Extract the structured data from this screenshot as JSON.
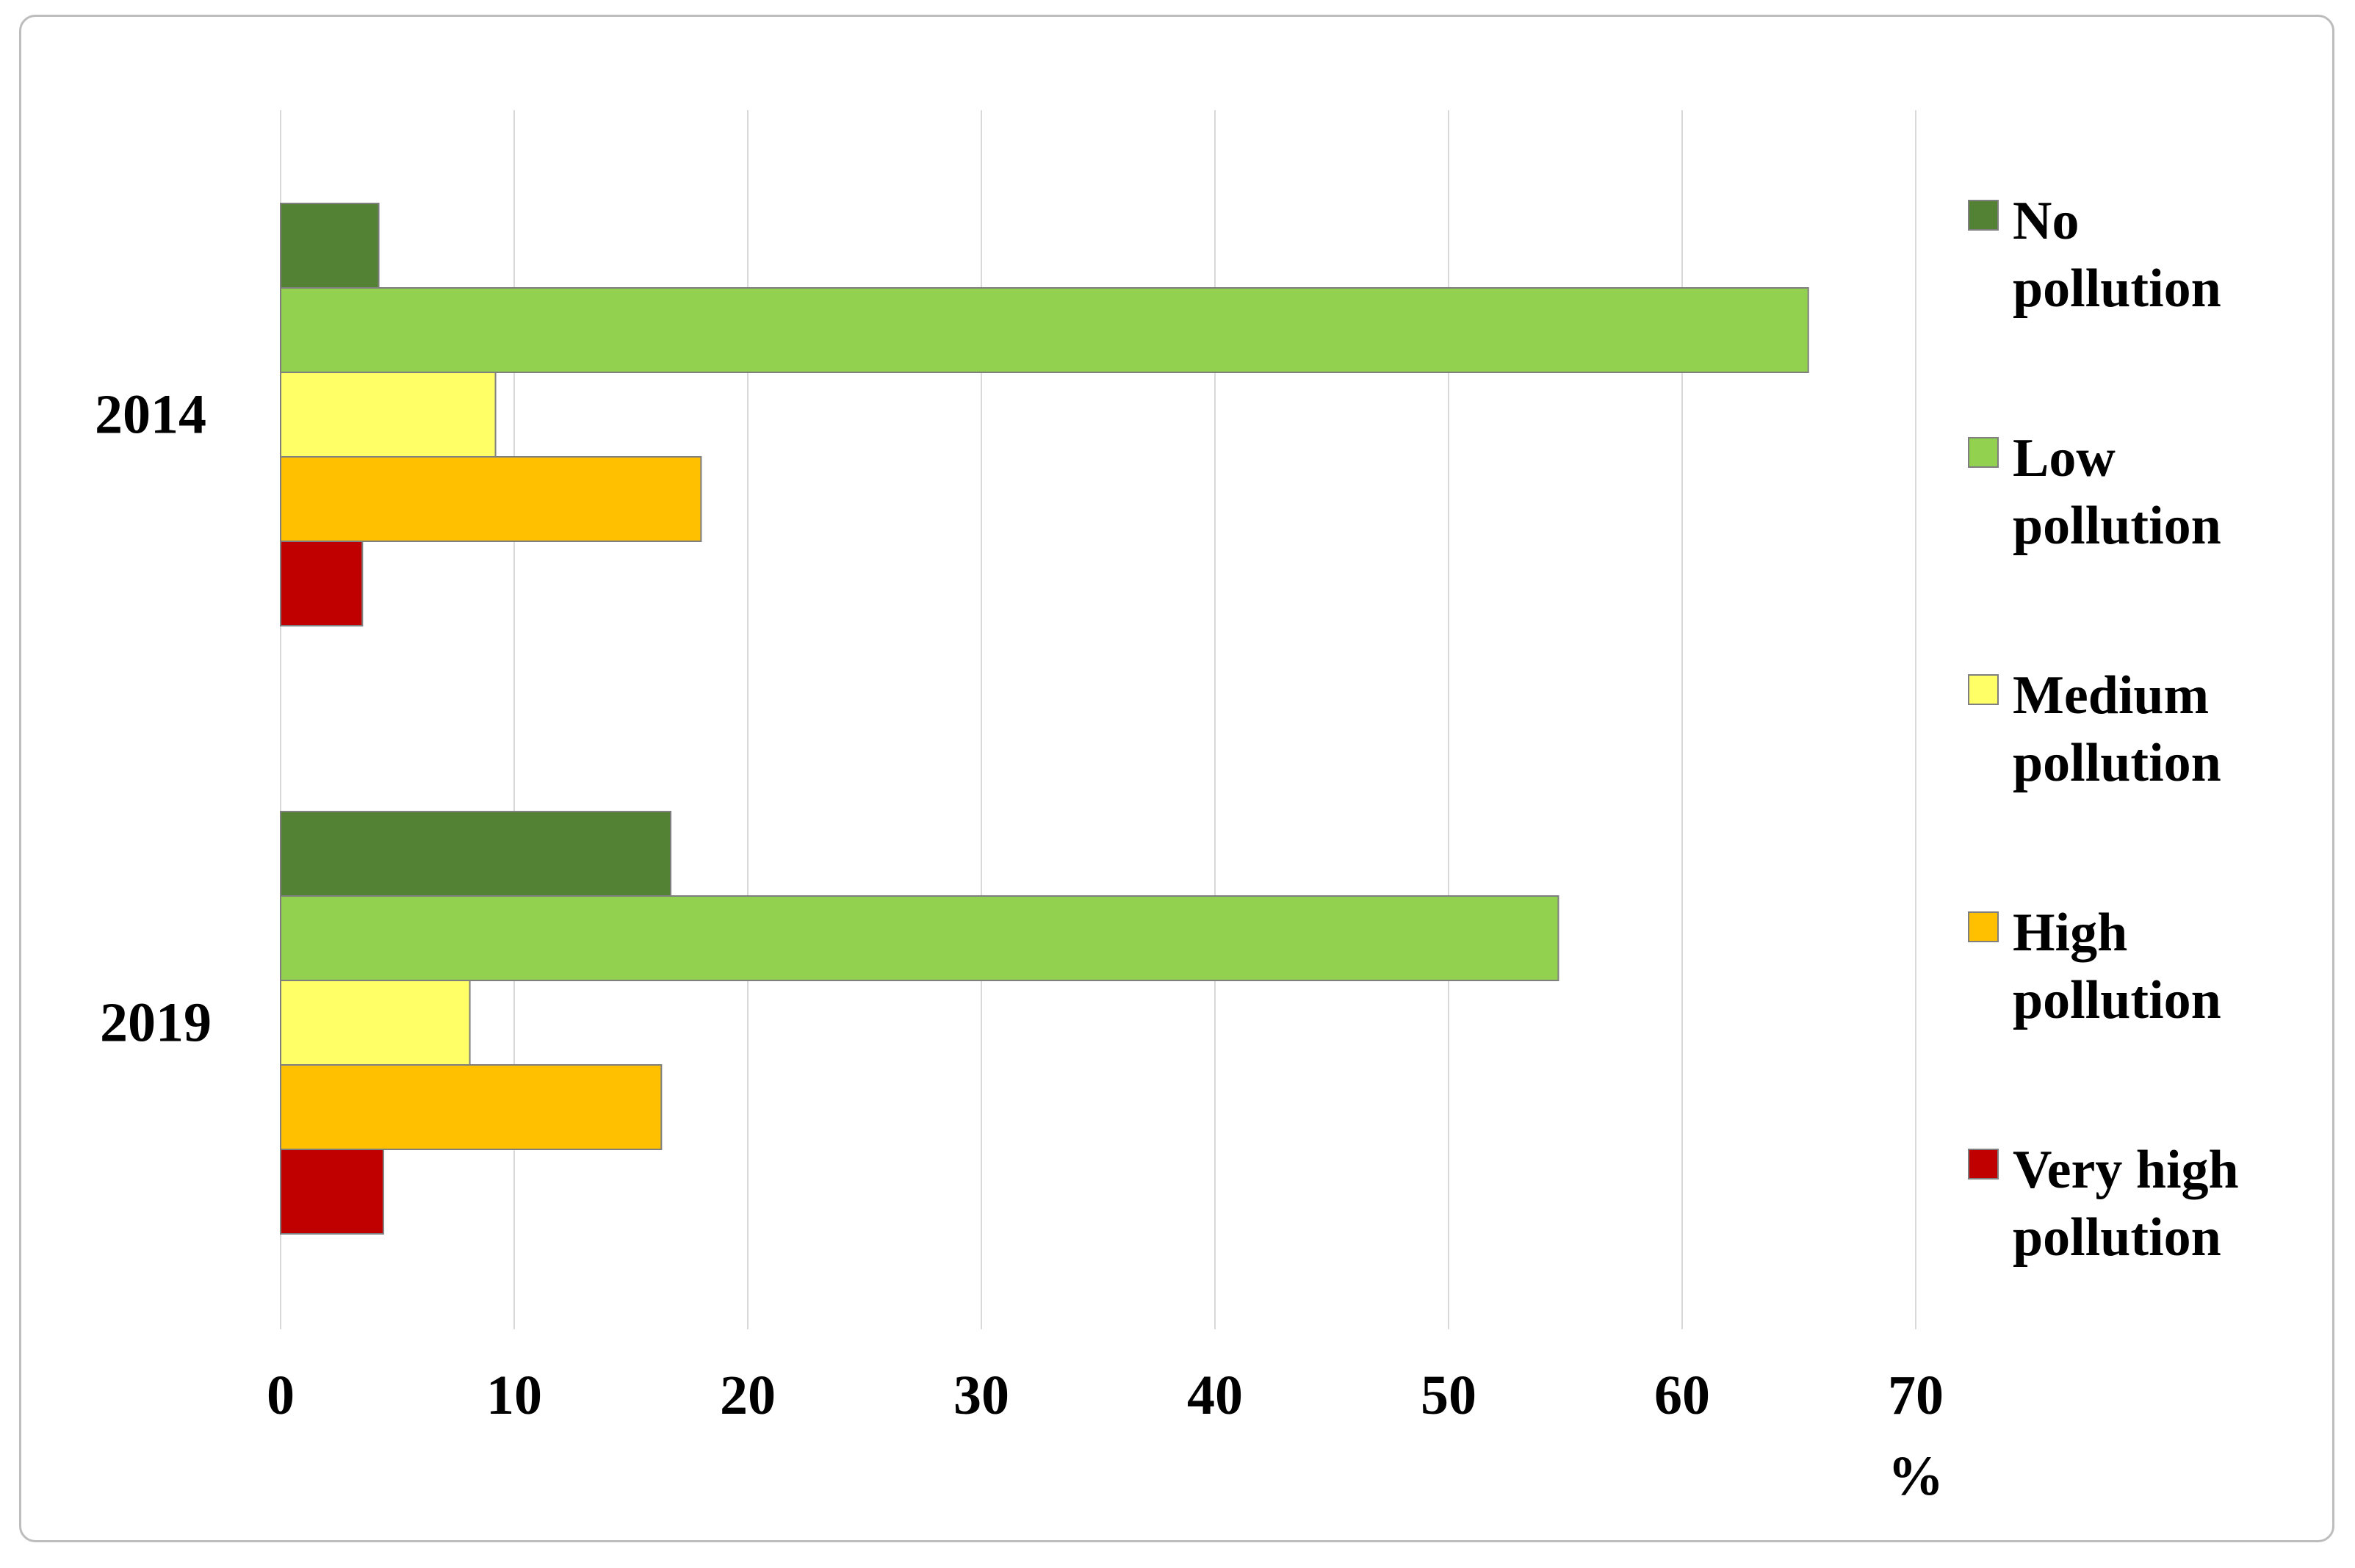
{
  "chart_data": {
    "type": "bar",
    "orientation": "horizontal",
    "categories": [
      "2014",
      "2019"
    ],
    "series": [
      {
        "name": "No pollution",
        "values": [
          4.2,
          16.7
        ],
        "color": "#548235"
      },
      {
        "name": "Low pollution",
        "values": [
          65.4,
          54.7
        ],
        "color": "#92d050"
      },
      {
        "name": "Medium pollution",
        "values": [
          9.2,
          8.1
        ],
        "color": "#ffff66"
      },
      {
        "name": "High pollution",
        "values": [
          18.0,
          16.3
        ],
        "color": "#ffc000"
      },
      {
        "name": "Very high pollution",
        "values": [
          3.5,
          4.4
        ],
        "color": "#c00000"
      }
    ],
    "xlim": [
      0,
      70
    ],
    "xticks": [
      "0",
      "10",
      "20",
      "30",
      "40",
      "50",
      "60",
      "70"
    ],
    "xlabel": "%",
    "ylabel": "",
    "title": "",
    "grid": "vertical",
    "legend": {
      "position": "right",
      "items": [
        {
          "lines": [
            "No",
            "pollution"
          ]
        },
        {
          "lines": [
            "Low",
            "pollution"
          ]
        },
        {
          "lines": [
            "Medium",
            "pollution"
          ]
        },
        {
          "lines": [
            "High",
            "pollution"
          ]
        },
        {
          "lines": [
            "Very high",
            "pollution"
          ]
        }
      ]
    }
  }
}
